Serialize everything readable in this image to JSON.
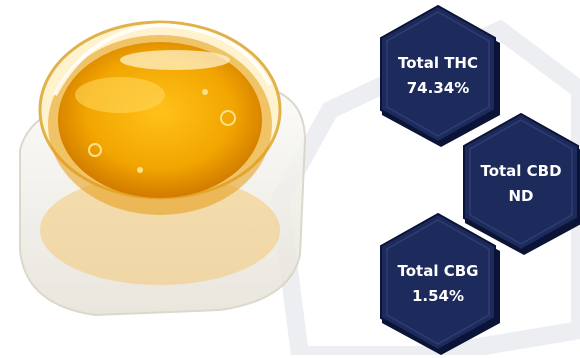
{
  "image": {
    "subject": "jar-of-amber-oil",
    "icon": "oil-jar-icon"
  },
  "colors": {
    "badge_fill": "#1d2b5c",
    "badge_edge": "#0b1436",
    "text": "#ffffff",
    "oil": "#f2a500",
    "background_hex": "#e9ebef"
  },
  "badges": [
    {
      "label": "Total THC",
      "value": "74.34%"
    },
    {
      "label": "Total CBD",
      "value": "ND"
    },
    {
      "label": "Total CBG",
      "value": "1.54%"
    }
  ]
}
